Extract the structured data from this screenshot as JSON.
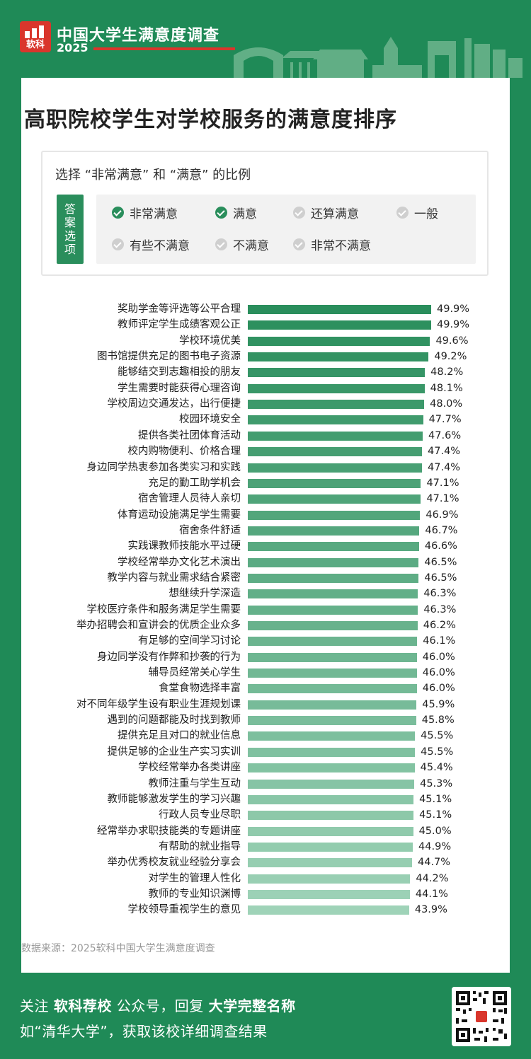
{
  "header": {
    "brand": "软科",
    "title": "中国大学生满意度调查",
    "year": "2025"
  },
  "card": {
    "title": "高职院校学生对学校服务的满意度排序",
    "legend_caption": "选择 “非常满意” 和 “满意” 的比例",
    "answer_tag": "答案选项",
    "options": [
      {
        "label": "非常满意",
        "checked": true
      },
      {
        "label": "满意",
        "checked": true
      },
      {
        "label": "还算满意",
        "checked": false
      },
      {
        "label": "一般",
        "checked": false
      },
      {
        "label": "有些不满意",
        "checked": false
      },
      {
        "label": "不满意",
        "checked": false
      },
      {
        "label": "非常不满意",
        "checked": false
      }
    ],
    "source": "数据来源：2025软科中国大学生满意度调查"
  },
  "colors": {
    "brand_green": "#1f8a57",
    "bar_dark": "#2a8e5c",
    "bar_light": "#9fd3b8",
    "check_on": "#2a8e5c",
    "check_off": "#cfcfcf",
    "brand_red": "#d9362c"
  },
  "chart_data": {
    "type": "bar",
    "orientation": "horizontal",
    "categories": [
      "奖助学金等评选等公平合理",
      "教师评定学生成绩客观公正",
      "学校环境优美",
      "图书馆提供充足的图书电子资源",
      "能够结交到志趣相投的朋友",
      "学生需要时能获得心理咨询",
      "学校周边交通发达，出行便捷",
      "校园环境安全",
      "提供各类社团体育活动",
      "校内购物便利、价格合理",
      "身边同学热衷参加各类实习和实践",
      "充足的勤工助学机会",
      "宿舍管理人员待人亲切",
      "体育运动设施满足学生需要",
      "宿舍条件舒适",
      "实践课教师技能水平过硬",
      "学校经常举办文化艺术演出",
      "教学内容与就业需求结合紧密",
      "想继续升学深造",
      "学校医疗条件和服务满足学生需要",
      "举办招聘会和宣讲会的优质企业众多",
      "有足够的空间学习讨论",
      "身边同学没有作弊和抄袭的行为",
      "辅导员经常关心学生",
      "食堂食物选择丰富",
      "对不同年级学生设有职业生涯规划课",
      "遇到的问题都能及时找到教师",
      "提供充足且对口的就业信息",
      "提供足够的企业生产实习实训",
      "学校经常举办各类讲座",
      "教师注重与学生互动",
      "教师能够激发学生的学习兴趣",
      "行政人员专业尽职",
      "经常举办求职技能类的专题讲座",
      "有帮助的就业指导",
      "举办优秀校友就业经验分享会",
      "对学生的管理人性化",
      "教师的专业知识渊博",
      "学校领导重视学生的意见"
    ],
    "values": [
      49.9,
      49.9,
      49.6,
      49.2,
      48.2,
      48.1,
      48.0,
      47.7,
      47.6,
      47.4,
      47.4,
      47.1,
      47.1,
      46.9,
      46.7,
      46.6,
      46.5,
      46.5,
      46.3,
      46.3,
      46.2,
      46.1,
      46.0,
      46.0,
      46.0,
      45.9,
      45.8,
      45.5,
      45.5,
      45.4,
      45.3,
      45.1,
      45.1,
      45.0,
      44.9,
      44.7,
      44.2,
      44.1,
      43.9
    ],
    "value_labels": [
      "49.9%",
      "49.9%",
      "49.6%",
      "49.2%",
      "48.2%",
      "48.1%",
      "48.0%",
      "47.7%",
      "47.6%",
      "47.4%",
      "47.4%",
      "47.1%",
      "47.1%",
      "46.9%",
      "46.7%",
      "46.6%",
      "46.5%",
      "46.5%",
      "46.3%",
      "46.3%",
      "46.2%",
      "46.1%",
      "46.0%",
      "46.0%",
      "46.0%",
      "45.9%",
      "45.8%",
      "45.5%",
      "45.5%",
      "45.4%",
      "45.3%",
      "45.1%",
      "45.1%",
      "45.0%",
      "44.9%",
      "44.7%",
      "44.2%",
      "44.1%",
      "43.9%"
    ],
    "unit": "%",
    "sorted": "descending"
  },
  "footer": {
    "line1_prefix": "关注 ",
    "line1_account": "软科荐校",
    "line1_mid": " 公众号，回复 ",
    "line1_keyword": "大学完整名称",
    "line2": "如“清华大学”，获取该校详细调查结果",
    "qr_icon": "qr-code-icon"
  }
}
